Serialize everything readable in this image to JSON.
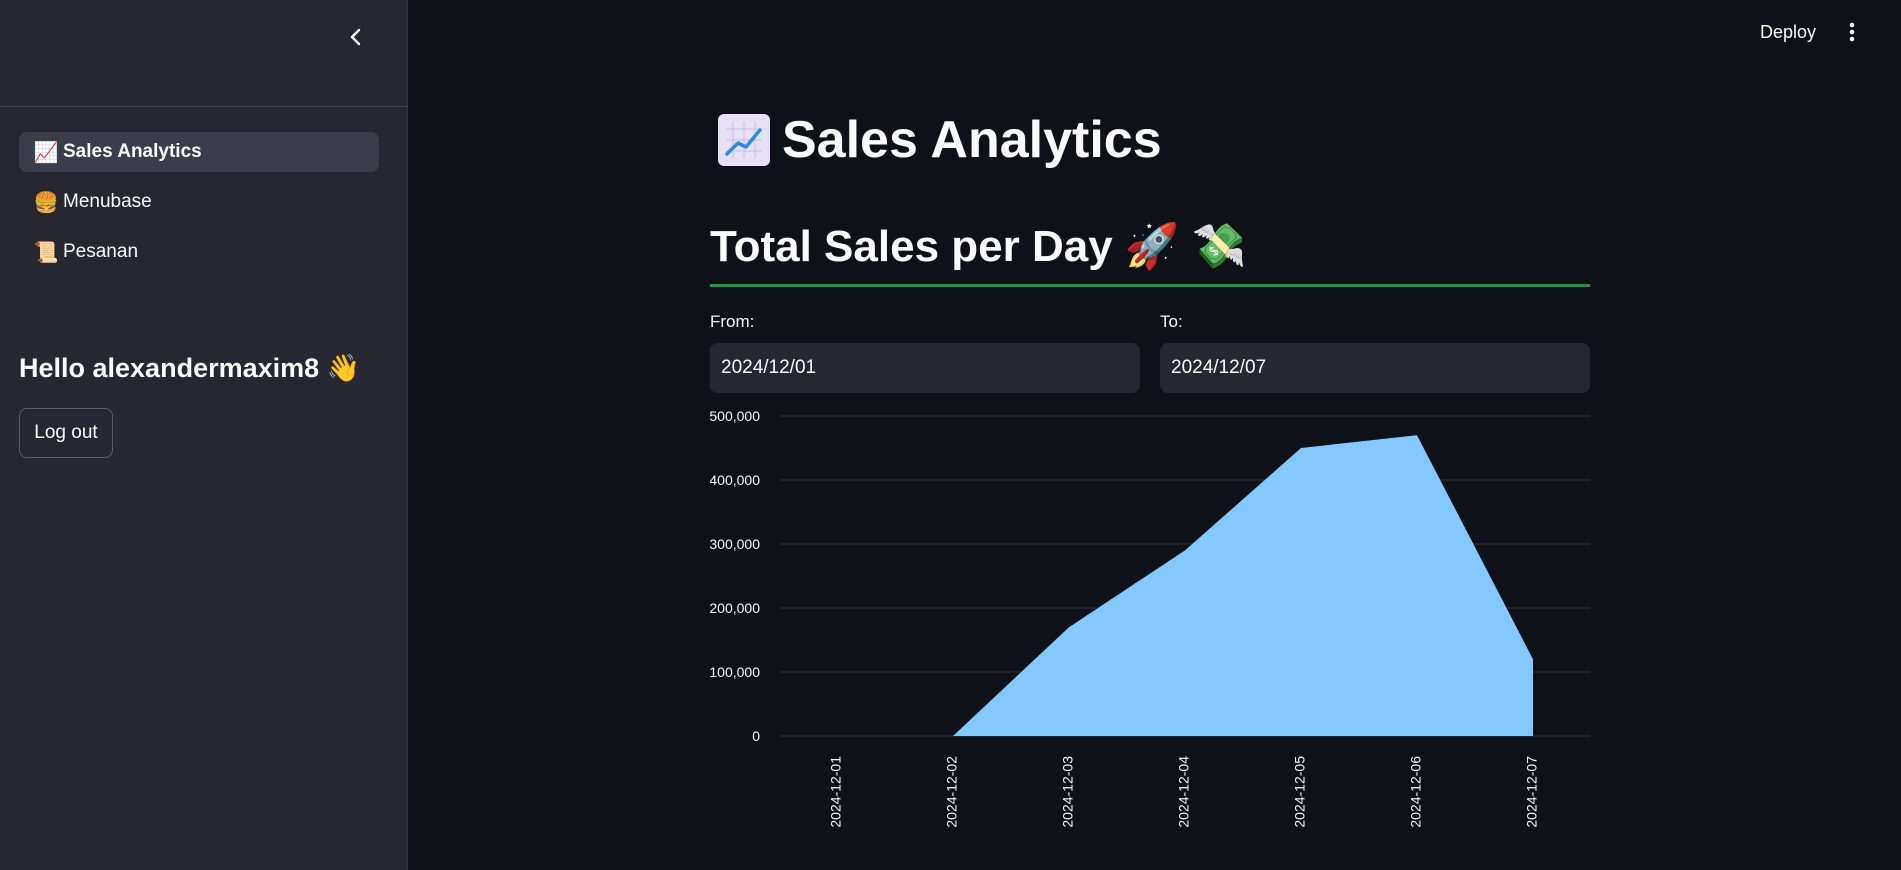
{
  "sidebar": {
    "nav": [
      {
        "label": "Sales Analytics",
        "icon": "📈",
        "active": true
      },
      {
        "label": "Menubase",
        "icon": "🍔",
        "active": false
      },
      {
        "label": "Pesanan",
        "icon": "📜",
        "active": false
      }
    ],
    "greeting": "Hello alexandermaxim8 👋",
    "logout_label": "Log out"
  },
  "header": {
    "deploy_label": "Deploy"
  },
  "main": {
    "title": "Sales Analytics",
    "title_icon": "chart-increasing-icon",
    "section_title": "Total Sales per Day 🚀 💸",
    "from_label": "From:",
    "from_value": "2024/12/01",
    "to_label": "To:",
    "to_value": "2024/12/07"
  },
  "colors": {
    "area": "#83c9ff",
    "accent_rule": "#21c354",
    "background": "#0e1117",
    "sidebar": "#262730"
  },
  "chart_data": {
    "type": "area",
    "x": [
      "2024-12-01",
      "2024-12-02",
      "2024-12-03",
      "2024-12-04",
      "2024-12-05",
      "2024-12-06",
      "2024-12-07"
    ],
    "values": [
      0,
      0,
      170000,
      290000,
      450000,
      470000,
      120000
    ],
    "y_ticks": [
      "0",
      "100,000",
      "200,000",
      "300,000",
      "400,000",
      "500,000"
    ],
    "ylim": [
      0,
      500000
    ],
    "grid": true,
    "title": "",
    "xlabel": "",
    "ylabel": ""
  }
}
